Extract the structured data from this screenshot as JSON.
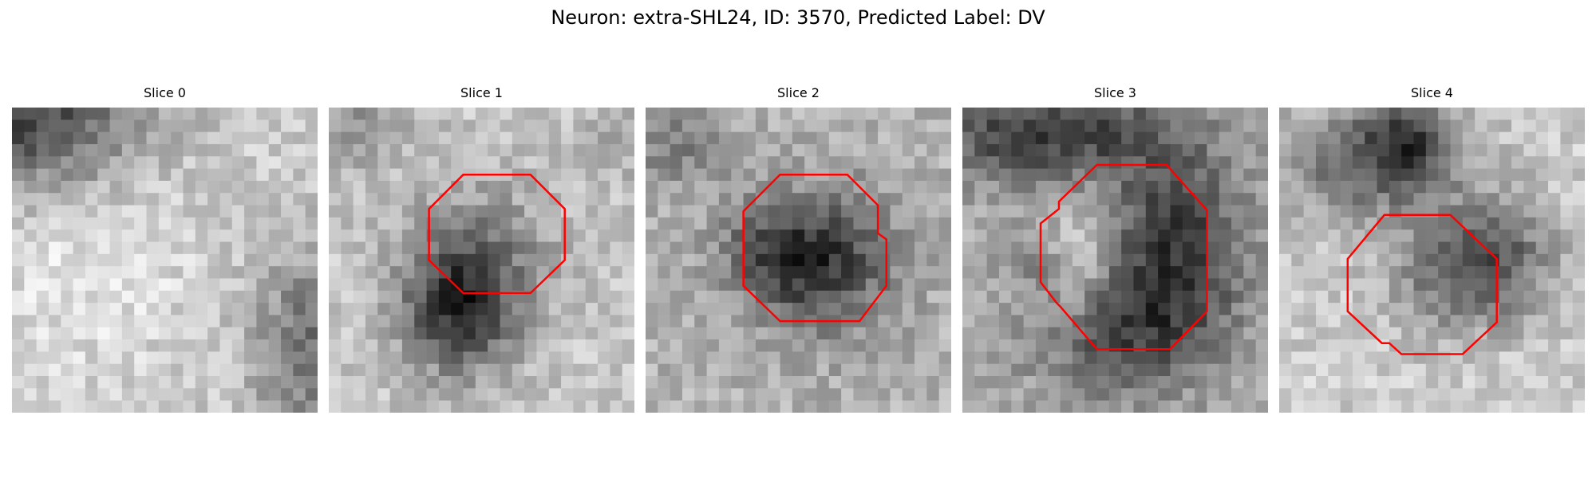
{
  "figure": {
    "title": "Neuron: extra-SHL24, ID: 3570, Predicted Label: DV",
    "outline_color": "#ff0000",
    "slices": [
      {
        "title": "Slice 0",
        "has_roi": false
      },
      {
        "title": "Slice 1",
        "has_roi": true
      },
      {
        "title": "Slice 2",
        "has_roi": true
      },
      {
        "title": "Slice 3",
        "has_roi": true
      },
      {
        "title": "Slice 4",
        "has_roi": true
      }
    ]
  }
}
